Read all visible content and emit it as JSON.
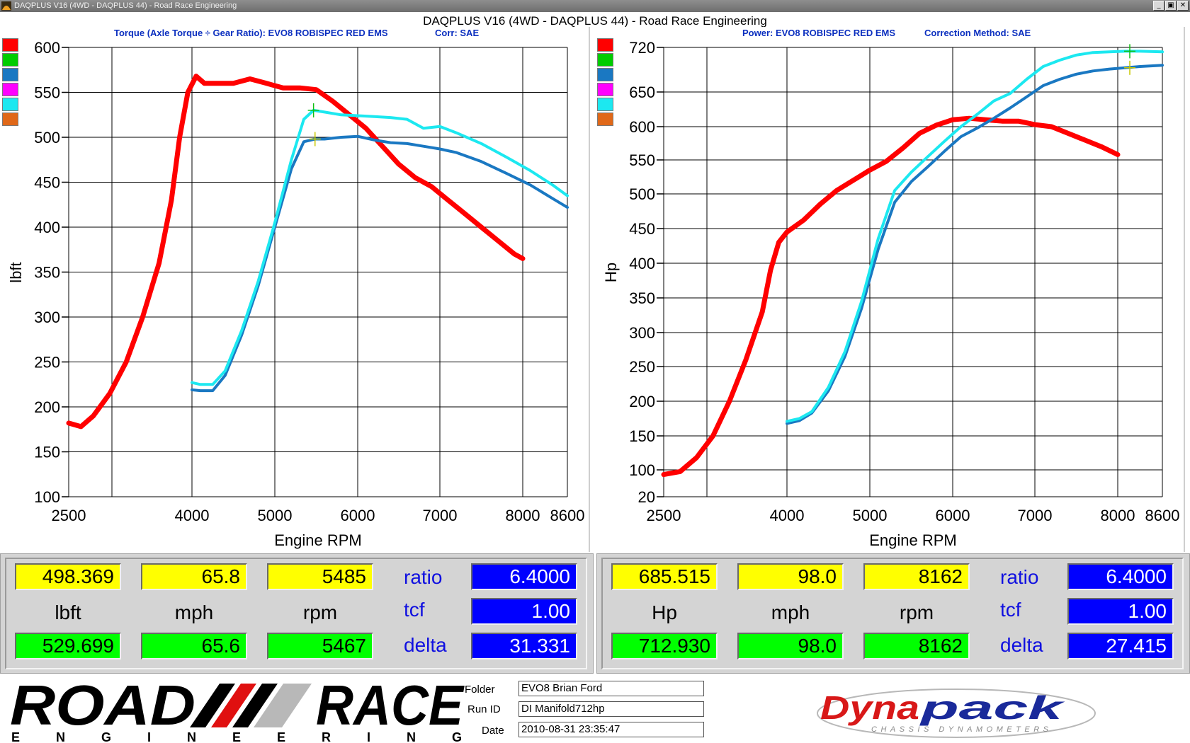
{
  "app": {
    "titlebar": "DAQPLUS V16 (4WD - DAQPLUS 44) - Road Race Engineering",
    "window_title": "DAQPLUS V16 (4WD - DAQPLUS 44) - Road Race Engineering",
    "min_glyph": "_",
    "max_glyph": "▣",
    "close_glyph": "✕"
  },
  "colors": {
    "red": "#ff0000",
    "green": "#00cc00",
    "blue": "#1a78c2",
    "magenta": "#ff00ff",
    "cyan": "#1ce8f0",
    "orange": "#e06818",
    "header_blue": "#0b2fbf"
  },
  "torque_panel": {
    "header_left": "Torque (Axle Torque ÷ Gear Ratio): EVO8 ROBISPEC RED EMS",
    "header_right": "Corr: SAE",
    "swatches": [
      "red",
      "green",
      "blue",
      "magenta",
      "cyan",
      "orange"
    ],
    "readout": {
      "yellow": [
        "498.369",
        "65.8",
        "5485"
      ],
      "units": [
        "lbft",
        "mph",
        "rpm"
      ],
      "green": [
        "529.699",
        "65.6",
        "5467"
      ],
      "labels": [
        "ratio",
        "tcf",
        "delta"
      ],
      "blue": [
        "6.4000",
        "1.00",
        "31.331"
      ]
    }
  },
  "power_panel": {
    "header_left": "Power: EVO8 ROBISPEC RED EMS",
    "header_right": "Correction Method: SAE",
    "swatches": [
      "red",
      "green",
      "blue",
      "magenta",
      "cyan",
      "orange"
    ],
    "readout": {
      "yellow": [
        "685.515",
        "98.0",
        "8162"
      ],
      "units": [
        "Hp",
        "mph",
        "rpm"
      ],
      "green": [
        "712.930",
        "98.0",
        "8162"
      ],
      "labels": [
        "ratio",
        "tcf",
        "delta"
      ],
      "blue": [
        "6.4000",
        "1.00",
        "27.415"
      ]
    }
  },
  "footer": {
    "logo_main": "ROAD",
    "logo_main2": "RACE",
    "logo_sub": "ENGINEERING",
    "folder_label": "Folder",
    "runid_label": "Run ID",
    "date_label": "Date",
    "folder": "EVO8 Brian Ford",
    "runid": "DI Manifold712hp",
    "date": "2010-08-31 23:35:47",
    "brand": "Dynapack",
    "brand_sub": "CHASSIS DYNAMOMETERS"
  },
  "chart_data": [
    {
      "type": "line",
      "title": "Torque (Axle Torque ÷ Gear Ratio): EVO8 ROBISPEC RED EMS",
      "xlabel": "Engine RPM",
      "ylabel": "lbft",
      "x_ticks": [
        "2500",
        "4000",
        "5000",
        "6000",
        "7000",
        "8000",
        "8600"
      ],
      "y_ticks": [
        "600",
        "550",
        "500",
        "450",
        "400",
        "350",
        "300",
        "250",
        "200",
        "150",
        "100"
      ],
      "xlim": [
        2500,
        8600
      ],
      "ylim": [
        100,
        600
      ],
      "grid": true,
      "series": [
        {
          "color": "red",
          "x": [
            2500,
            2650,
            2800,
            3000,
            3200,
            3400,
            3600,
            3750,
            3850,
            3950,
            4050,
            4150,
            4300,
            4500,
            4700,
            4900,
            5100,
            5300,
            5500,
            5700,
            5900,
            6100,
            6300,
            6500,
            6700,
            6900,
            7100,
            7300,
            7500,
            7700,
            7900,
            8000
          ],
          "y": [
            182,
            178,
            190,
            215,
            250,
            300,
            360,
            430,
            500,
            550,
            568,
            560,
            560,
            560,
            565,
            560,
            555,
            555,
            553,
            540,
            525,
            510,
            490,
            470,
            455,
            445,
            430,
            415,
            400,
            385,
            370,
            365
          ]
        },
        {
          "color": "blue",
          "x": [
            4000,
            4100,
            4250,
            4400,
            4600,
            4800,
            5000,
            5200,
            5350,
            5485,
            5600,
            5800,
            6000,
            6200,
            6400,
            6600,
            6800,
            7000,
            7200,
            7500,
            7800,
            8100,
            8400,
            8600
          ],
          "y": [
            219,
            218,
            218,
            235,
            280,
            335,
            400,
            465,
            495,
            498,
            498,
            500,
            501,
            497,
            494,
            493,
            490,
            487,
            483,
            473,
            460,
            447,
            432,
            422
          ]
        },
        {
          "color": "cyan",
          "x": [
            4000,
            4100,
            4250,
            4400,
            4600,
            4800,
            5000,
            5200,
            5350,
            5467,
            5600,
            5800,
            6000,
            6200,
            6400,
            6600,
            6800,
            7000,
            7200,
            7500,
            7800,
            8100,
            8400,
            8600
          ],
          "y": [
            227,
            225,
            225,
            240,
            285,
            340,
            405,
            475,
            520,
            530,
            528,
            525,
            524,
            523,
            522,
            520,
            510,
            512,
            505,
            493,
            478,
            463,
            447,
            435
          ]
        }
      ]
    },
    {
      "type": "line",
      "title": "Power: EVO8 ROBISPEC RED EMS",
      "xlabel": "Engine RPM",
      "ylabel": "Hp",
      "x_ticks": [
        "2500",
        "4000",
        "5000",
        "6000",
        "7000",
        "8000",
        "8600"
      ],
      "y_ticks": [
        "720",
        "650",
        "600",
        "550",
        "500",
        "450",
        "400",
        "350",
        "300",
        "250",
        "200",
        "150",
        "100",
        "20"
      ],
      "xlim": [
        2500,
        8600
      ],
      "grid": true,
      "series": [
        {
          "color": "red",
          "x": [
            2500,
            2700,
            2900,
            3100,
            3300,
            3500,
            3700,
            3800,
            3900,
            4000,
            4200,
            4400,
            4600,
            4800,
            5000,
            5200,
            5400,
            5600,
            5800,
            6000,
            6200,
            6400,
            6600,
            6800,
            7000,
            7200,
            7400,
            7600,
            7800,
            8000
          ],
          "y": [
            86,
            95,
            118,
            150,
            200,
            260,
            330,
            390,
            430,
            445,
            462,
            485,
            505,
            520,
            535,
            548,
            568,
            590,
            602,
            610,
            612,
            610,
            608,
            608,
            603,
            600,
            590,
            580,
            570,
            558
          ]
        },
        {
          "color": "blue",
          "x": [
            4000,
            4150,
            4300,
            4500,
            4700,
            4900,
            5100,
            5300,
            5500,
            5700,
            5900,
            6100,
            6300,
            6500,
            6700,
            6900,
            7100,
            7300,
            7500,
            7700,
            7900,
            8100,
            8300,
            8600
          ],
          "y": [
            168,
            172,
            183,
            215,
            265,
            335,
            420,
            488,
            518,
            540,
            563,
            585,
            598,
            612,
            627,
            643,
            660,
            670,
            678,
            683,
            686,
            688,
            690,
            692
          ]
        },
        {
          "color": "cyan",
          "x": [
            4000,
            4150,
            4300,
            4500,
            4700,
            4900,
            5100,
            5300,
            5500,
            5700,
            5900,
            6100,
            6300,
            6500,
            6700,
            6900,
            7100,
            7300,
            7500,
            7700,
            7900,
            8100,
            8300,
            8600
          ],
          "y": [
            171,
            175,
            185,
            220,
            272,
            345,
            435,
            505,
            532,
            555,
            578,
            600,
            618,
            637,
            648,
            670,
            690,
            700,
            708,
            712,
            713,
            714,
            714,
            713
          ]
        }
      ]
    }
  ]
}
